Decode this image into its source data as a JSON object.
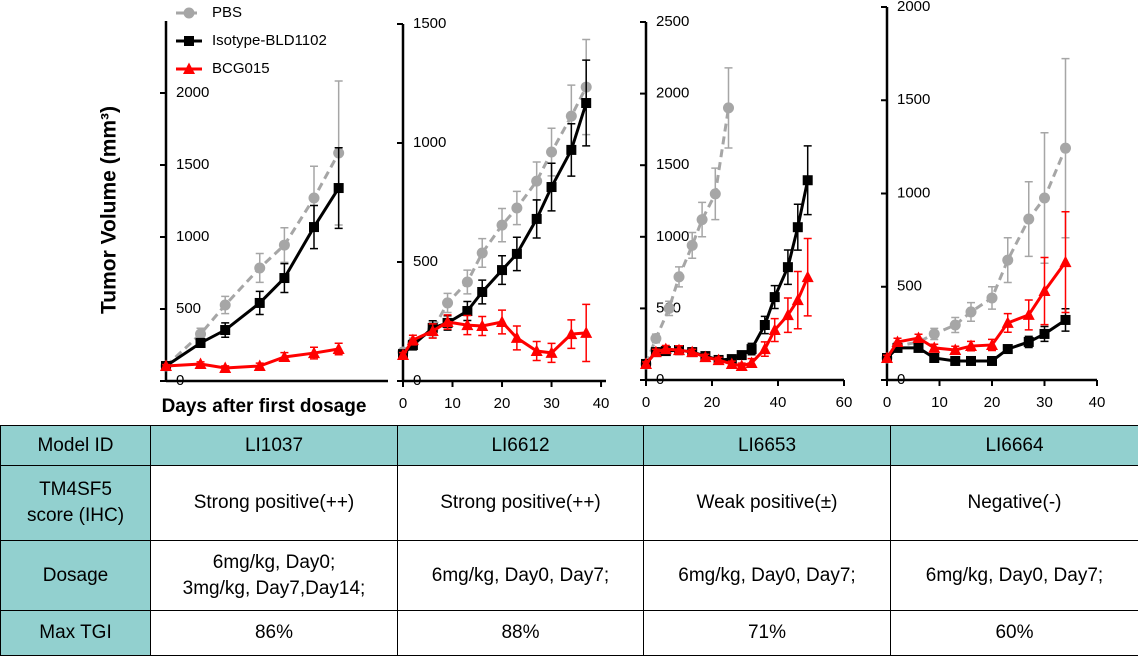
{
  "chart_data": [
    {
      "type": "line",
      "ylabel": "Tumor Volume (mm³)",
      "xlabel": "Days after first dosage",
      "x": [
        0,
        7,
        12,
        19,
        24,
        30,
        35
      ],
      "xlim": [
        0,
        45
      ],
      "ylim": [
        0,
        2500
      ],
      "yticks": [
        0,
        500,
        1000,
        1500,
        2000
      ],
      "series": [
        {
          "name": "PBS",
          "color": "#a6a6a6",
          "marker": "circle",
          "dashed": true,
          "values": [
            104,
            326,
            528,
            785,
            944,
            1271,
            1583
          ],
          "errors": [
            20,
            40,
            60,
            100,
            120,
            220,
            500
          ]
        },
        {
          "name": "Isotype-BLD1102",
          "color": "#000000",
          "marker": "square",
          "dashed": false,
          "values": [
            104,
            264,
            354,
            542,
            715,
            1069,
            1340
          ],
          "errors": [
            20,
            30,
            50,
            80,
            100,
            150,
            280
          ]
        },
        {
          "name": "BCG015",
          "color": "#ff0000",
          "marker": "triangle",
          "dashed": false,
          "values": [
            104,
            118,
            90,
            104,
            167,
            194,
            222
          ],
          "errors": [
            10,
            15,
            15,
            20,
            30,
            40,
            40
          ]
        }
      ]
    },
    {
      "type": "line",
      "x": [
        0,
        2,
        6,
        9,
        13,
        16,
        20,
        23,
        27,
        30,
        34,
        37
      ],
      "xlim": [
        0,
        41
      ],
      "xticks": [
        0,
        10,
        20,
        30,
        40
      ],
      "ylim": [
        0,
        1500
      ],
      "yticks": [
        0,
        500,
        1000,
        1500
      ],
      "series": [
        {
          "color": "#a6a6a6",
          "marker": "circle",
          "dashed": true,
          "values": [
            122,
            160,
            214,
            328,
            416,
            538,
            655,
            727,
            840,
            962,
            1113,
            1235
          ],
          "errors": [
            10,
            20,
            30,
            40,
            50,
            60,
            70,
            70,
            80,
            100,
            130,
            200
          ]
        },
        {
          "color": "#000000",
          "marker": "square",
          "dashed": false,
          "values": [
            113,
            151,
            223,
            244,
            294,
            374,
            466,
            534,
            681,
            815,
            971,
            1168
          ],
          "errors": [
            10,
            20,
            30,
            30,
            40,
            50,
            60,
            70,
            80,
            100,
            110,
            180
          ]
        },
        {
          "color": "#ff0000",
          "marker": "triangle",
          "dashed": false,
          "values": [
            109,
            172,
            210,
            248,
            235,
            231,
            248,
            181,
            126,
            118,
            197,
            202
          ],
          "errors": [
            10,
            20,
            30,
            30,
            40,
            40,
            50,
            50,
            40,
            40,
            60,
            120
          ]
        }
      ]
    },
    {
      "type": "line",
      "x": [
        0,
        3,
        6,
        10,
        14,
        18,
        22,
        26,
        29,
        32,
        36,
        39,
        43,
        46,
        49
      ],
      "xlim": [
        0,
        60
      ],
      "xticks": [
        0,
        20,
        40,
        60
      ],
      "ylim": [
        0,
        2500
      ],
      "yticks": [
        0,
        500,
        1000,
        1500,
        2000,
        2500
      ],
      "series": [
        {
          "color": "#a6a6a6",
          "marker": "circle",
          "dashed": true,
          "x": [
            0,
            3,
            7,
            10,
            14,
            17,
            21,
            25
          ],
          "values": [
            112,
            290,
            500,
            720,
            940,
            1120,
            1300,
            1900
          ],
          "errors": [
            15,
            30,
            50,
            70,
            90,
            120,
            180,
            280
          ]
        },
        {
          "color": "#000000",
          "marker": "square",
          "dashed": false,
          "values": [
            112,
            195,
            202,
            209,
            195,
            167,
            140,
            146,
            174,
            216,
            384,
            579,
            788,
            1067,
            1395
          ],
          "errors": [
            15,
            20,
            25,
            30,
            20,
            20,
            20,
            20,
            25,
            40,
            60,
            80,
            120,
            160,
            240
          ]
        },
        {
          "color": "#ff0000",
          "marker": "triangle",
          "dashed": false,
          "values": [
            112,
            195,
            216,
            209,
            195,
            160,
            139,
            112,
            98,
            119,
            216,
            349,
            453,
            558,
            718
          ],
          "errors": [
            15,
            20,
            25,
            30,
            20,
            20,
            20,
            20,
            20,
            30,
            50,
            80,
            120,
            200,
            270
          ]
        }
      ]
    },
    {
      "type": "line",
      "x": [
        0,
        2,
        6,
        9,
        13,
        16,
        20,
        23,
        27,
        30,
        34
      ],
      "xlim": [
        0,
        40
      ],
      "xticks": [
        0,
        10,
        20,
        30,
        40
      ],
      "ylim": [
        0,
        2000
      ],
      "yticks": [
        0,
        500,
        1000,
        1500,
        2000
      ],
      "series": [
        {
          "color": "#a6a6a6",
          "marker": "circle",
          "dashed": true,
          "values": [
            118,
            182,
            204,
            247,
            295,
            365,
            440,
            643,
            863,
            976,
            1243
          ],
          "errors": [
            15,
            20,
            20,
            30,
            40,
            50,
            60,
            120,
            200,
            350,
            480
          ]
        },
        {
          "color": "#000000",
          "marker": "square",
          "dashed": false,
          "values": [
            118,
            172,
            172,
            118,
            102,
            102,
            102,
            166,
            204,
            247,
            322
          ],
          "errors": [
            10,
            15,
            15,
            15,
            15,
            15,
            15,
            20,
            30,
            40,
            60
          ]
        },
        {
          "color": "#ff0000",
          "marker": "triangle",
          "dashed": false,
          "values": [
            118,
            204,
            225,
            172,
            161,
            182,
            188,
            306,
            349,
            477,
            632
          ],
          "errors": [
            15,
            20,
            20,
            20,
            20,
            25,
            30,
            50,
            80,
            180,
            270
          ]
        }
      ]
    }
  ],
  "table": {
    "header": [
      "Model ID",
      "LI1037",
      "LI6612",
      "LI6653",
      "LI6664"
    ],
    "rows": [
      [
        [
          "TM4SF5",
          "score (IHC)"
        ],
        "Strong positive(++)",
        "Strong positive(++)",
        "Weak positive(±)",
        "Negative(-)"
      ],
      [
        "Dosage",
        [
          "6mg/kg, Day0;",
          "3mg/kg, Day7,Day14;"
        ],
        "6mg/kg, Day0, Day7;",
        "6mg/kg, Day0, Day7;",
        "6mg/kg, Day0, Day7;"
      ],
      [
        "Max TGI",
        "86%",
        "88%",
        "71%",
        "60%"
      ]
    ]
  }
}
